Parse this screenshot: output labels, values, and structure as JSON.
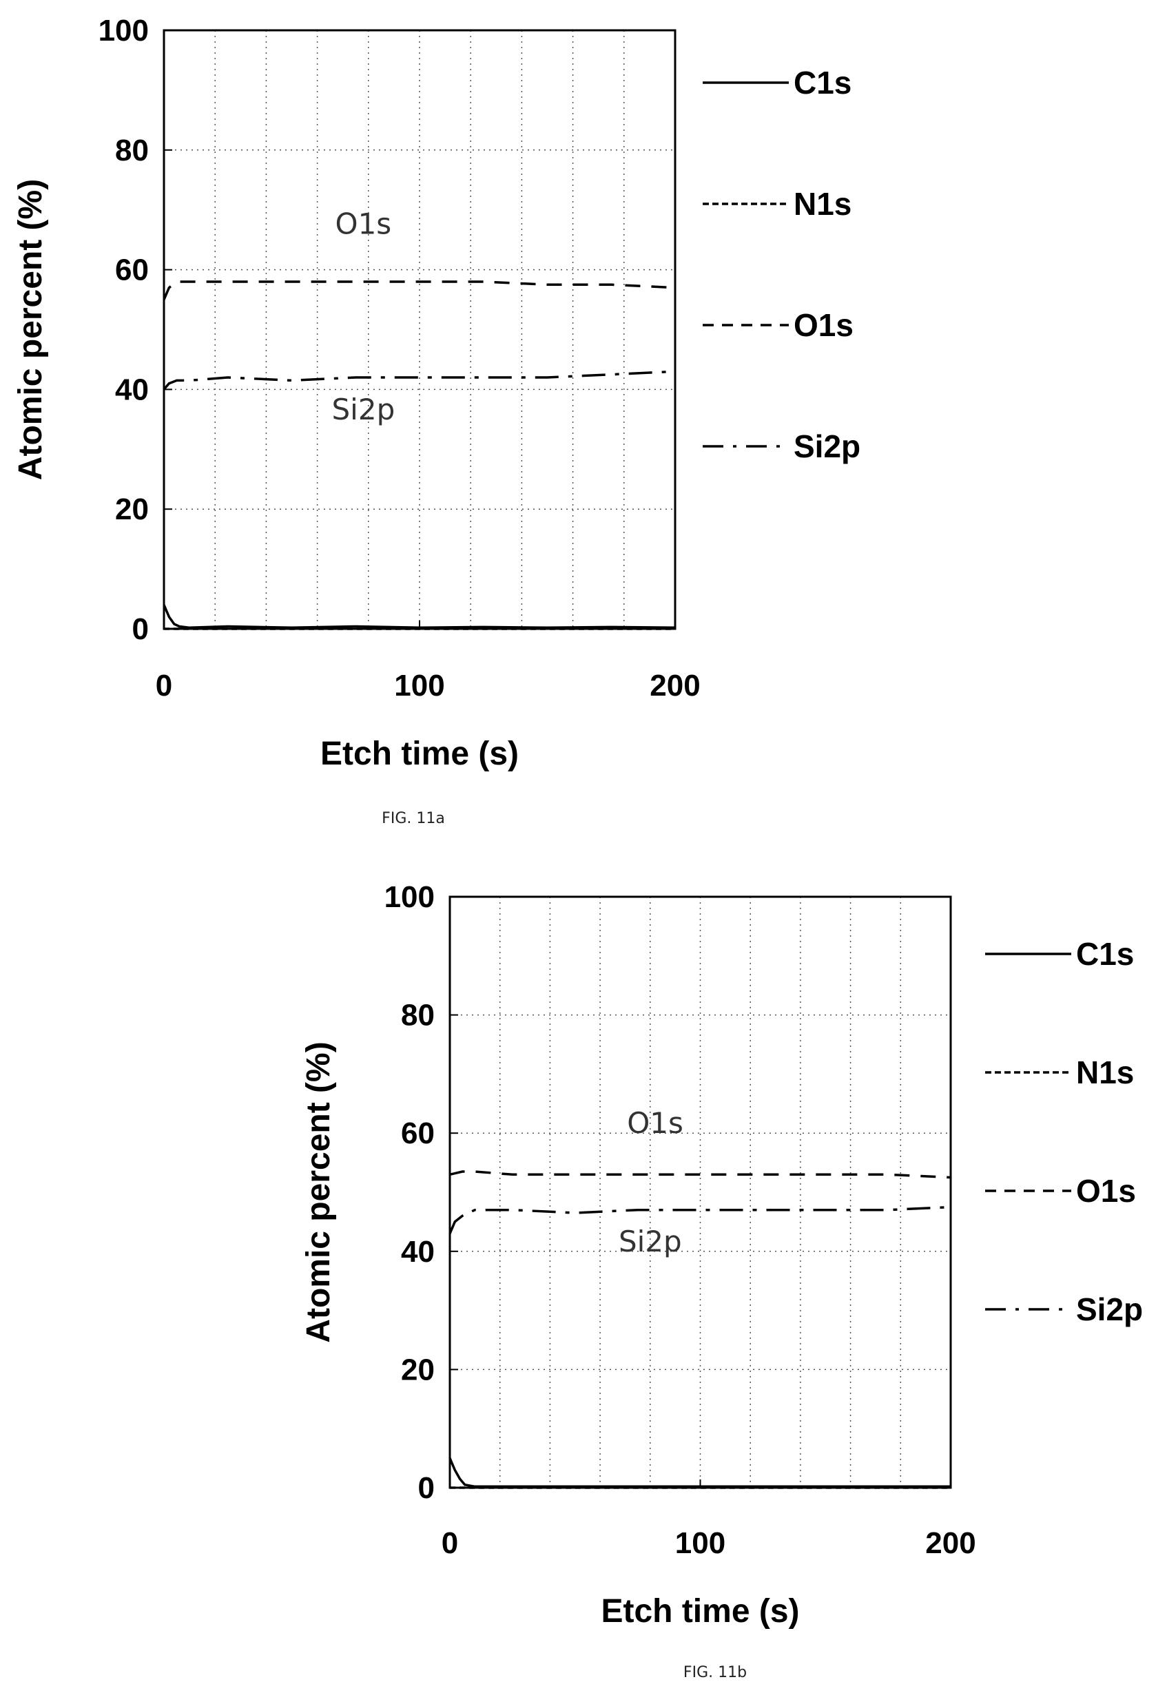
{
  "chart_data": [
    {
      "type": "line",
      "caption": "FIG. 11a",
      "xlabel": "Etch time (s)",
      "ylabel": "Atomic percent (%)",
      "xlim": [
        0,
        200
      ],
      "ylim": [
        0,
        100
      ],
      "xticks": [
        0,
        100,
        200
      ],
      "yticks": [
        0,
        20,
        40,
        60,
        80,
        100
      ],
      "grid": true,
      "legend_position": "right",
      "annotations": [
        {
          "text": "O1s",
          "x": 78,
          "y": 66
        },
        {
          "text": "Si2p",
          "x": 78,
          "y": 35
        }
      ],
      "series": [
        {
          "name": "C1s",
          "style": "solid",
          "x": [
            0,
            1,
            2,
            4,
            6,
            10,
            25,
            50,
            75,
            100,
            125,
            150,
            175,
            200
          ],
          "y": [
            4,
            3,
            2,
            0.8,
            0.4,
            0.2,
            0.4,
            0.2,
            0.4,
            0.2,
            0.3,
            0.2,
            0.3,
            0.2
          ]
        },
        {
          "name": "N1s",
          "style": "dotted",
          "x": [
            0,
            200
          ],
          "y": [
            0,
            0
          ]
        },
        {
          "name": "O1s",
          "style": "dashed",
          "x": [
            0,
            2,
            5,
            10,
            25,
            50,
            75,
            100,
            125,
            150,
            175,
            200
          ],
          "y": [
            55,
            57,
            58,
            58,
            58,
            58,
            58,
            58,
            58,
            57.5,
            57.5,
            57
          ]
        },
        {
          "name": "Si2p",
          "style": "dashdot",
          "x": [
            0,
            2,
            5,
            10,
            25,
            50,
            75,
            100,
            125,
            150,
            175,
            200
          ],
          "y": [
            40,
            41,
            41.5,
            41.5,
            42,
            41.5,
            42,
            42,
            42,
            42,
            42.5,
            43
          ]
        }
      ]
    },
    {
      "type": "line",
      "caption": "FIG. 11b",
      "xlabel": "Etch time (s)",
      "ylabel": "Atomic percent (%)",
      "xlim": [
        0,
        200
      ],
      "ylim": [
        0,
        100
      ],
      "xticks": [
        0,
        100,
        200
      ],
      "yticks": [
        0,
        20,
        40,
        60,
        80,
        100
      ],
      "grid": true,
      "legend_position": "right",
      "annotations": [
        {
          "text": "O1s",
          "x": 82,
          "y": 60
        },
        {
          "text": "Si2p",
          "x": 80,
          "y": 40
        }
      ],
      "series": [
        {
          "name": "C1s",
          "style": "solid",
          "x": [
            0,
            1,
            2,
            4,
            6,
            10,
            25,
            50,
            75,
            100,
            125,
            150,
            175,
            200
          ],
          "y": [
            5,
            4,
            3,
            1.5,
            0.5,
            0.2,
            0.2,
            0.2,
            0.2,
            0.2,
            0.2,
            0.2,
            0.2,
            0.2
          ]
        },
        {
          "name": "N1s",
          "style": "dotted",
          "x": [
            0,
            200
          ],
          "y": [
            0,
            0
          ]
        },
        {
          "name": "O1s",
          "style": "dashed",
          "x": [
            0,
            5,
            10,
            25,
            50,
            75,
            100,
            125,
            150,
            175,
            200
          ],
          "y": [
            53,
            53.5,
            53.5,
            53,
            53,
            53,
            53,
            53,
            53,
            53,
            52.5
          ]
        },
        {
          "name": "Si2p",
          "style": "dashdot",
          "x": [
            0,
            2,
            5,
            10,
            25,
            50,
            75,
            100,
            125,
            150,
            175,
            200
          ],
          "y": [
            43,
            45,
            46,
            47,
            47,
            46.5,
            47,
            47,
            47,
            47,
            47,
            47.5
          ]
        }
      ]
    }
  ]
}
